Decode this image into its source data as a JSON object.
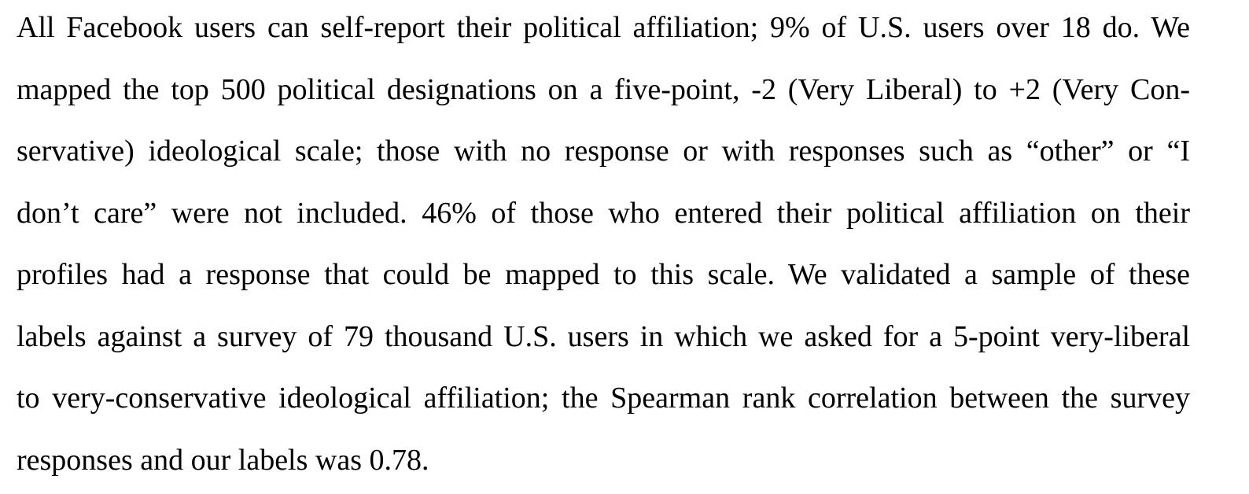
{
  "paragraph": {
    "lines": [
      "All Facebook users can self-report their political affiliation; 9% of U.S. users over 18 do. We",
      "mapped the top 500 political designations on a five-point, -2 (Very Liberal) to +2 (Very Con-",
      "servative) ideological scale; those with no response or with responses such as “other” or “I",
      "don’t care” were not included. 46% of those who entered their political affiliation on their",
      "profiles had a response that could be mapped to this scale. We validated a sample of these",
      "labels against a survey of 79 thousand U.S. users in which we asked for a 5-point very-liberal",
      "to very-conservative ideological affiliation; the Spearman rank correlation between the survey",
      "responses and our labels was 0.78."
    ]
  }
}
